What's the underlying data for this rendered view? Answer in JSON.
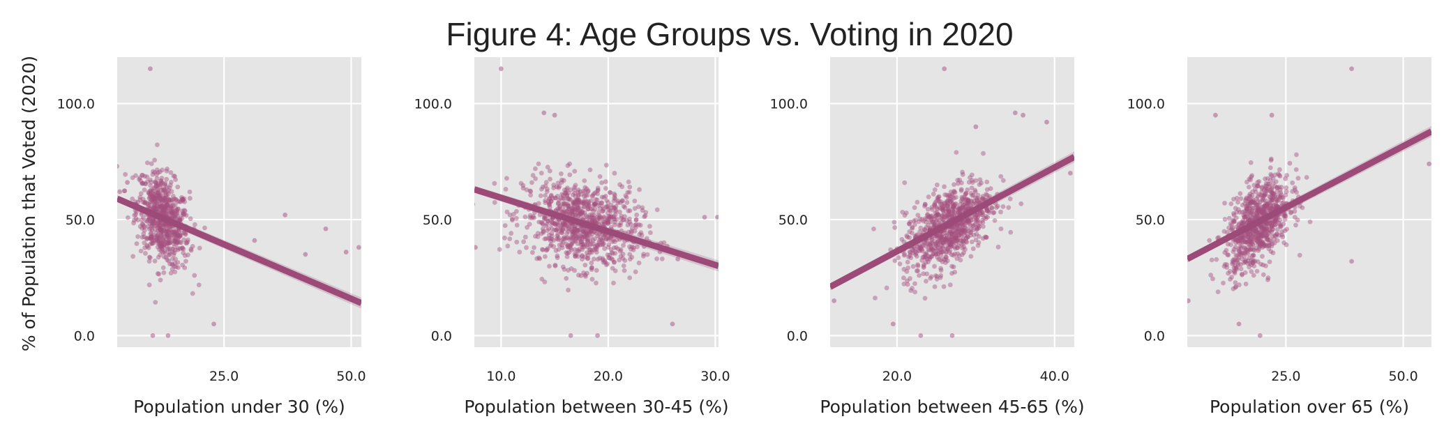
{
  "title": "Figure 4: Age Groups vs. Voting in 2020",
  "ylabel": "% of Population that Voted (2020)",
  "colors": {
    "points": "#a3507f",
    "line": "#9c4a78",
    "panel_bg": "#e5e5e5",
    "grid": "#ffffff"
  },
  "chart_data": [
    {
      "type": "scatter",
      "xlabel": "Population under 30 (%)",
      "xlim": [
        4,
        52
      ],
      "xticks": [
        25,
        50
      ],
      "xtick_labels": [
        "25.0",
        "50.0"
      ],
      "ylim": [
        -5,
        120
      ],
      "yticks": [
        0,
        50,
        100
      ],
      "ytick_labels": [
        "0.0",
        "50.0",
        "100.0"
      ],
      "regression": {
        "x": [
          4,
          52
        ],
        "y": [
          59,
          14
        ]
      },
      "cluster": {
        "x_center": 13,
        "y_center": 50,
        "x_spread": 2.6,
        "y_spread": 10,
        "correlation": -0.35,
        "count": 700
      },
      "outliers": [
        [
          10.5,
          115
        ],
        [
          11,
          0
        ],
        [
          14,
          0
        ],
        [
          23,
          5
        ],
        [
          37,
          52
        ],
        [
          41,
          35
        ],
        [
          45,
          46
        ],
        [
          49,
          36
        ],
        [
          51.5,
          38
        ],
        [
          6,
          66
        ],
        [
          4.5,
          62
        ],
        [
          31,
          41
        ]
      ]
    },
    {
      "type": "scatter",
      "xlabel": "Population between 30-45 (%)",
      "xlim": [
        7.5,
        30.3
      ],
      "xticks": [
        10,
        20,
        30
      ],
      "xtick_labels": [
        "10.0",
        "20.0",
        "30.0"
      ],
      "ylim": [
        -5,
        120
      ],
      "yticks": [
        0,
        50,
        100
      ],
      "ytick_labels": [
        "0.0",
        "50.0",
        "100.0"
      ],
      "regression": {
        "x": [
          7.5,
          30.3
        ],
        "y": [
          63,
          30
        ]
      },
      "cluster": {
        "x_center": 17.5,
        "y_center": 48,
        "x_spread": 2.7,
        "y_spread": 9.5,
        "correlation": -0.2,
        "count": 900
      },
      "outliers": [
        [
          10,
          115
        ],
        [
          14,
          96
        ],
        [
          15,
          95
        ],
        [
          16.5,
          0
        ],
        [
          19,
          0
        ],
        [
          26,
          5
        ],
        [
          29,
          51
        ],
        [
          30.2,
          51
        ],
        [
          7.6,
          38
        ],
        [
          26.5,
          33
        ]
      ]
    },
    {
      "type": "scatter",
      "xlabel": "Population between 45-65 (%)",
      "xlim": [
        11.5,
        42.5
      ],
      "xticks": [
        20,
        40
      ],
      "xtick_labels": [
        "20.0",
        "40.0"
      ],
      "ylim": [
        -5,
        120
      ],
      "yticks": [
        0,
        50,
        100
      ],
      "ytick_labels": [
        "0.0",
        "50.0",
        "100.0"
      ],
      "regression": {
        "x": [
          11.5,
          42.5
        ],
        "y": [
          21,
          77
        ]
      },
      "cluster": {
        "x_center": 26.5,
        "y_center": 47,
        "x_spread": 2.8,
        "y_spread": 10,
        "correlation": 0.55,
        "count": 850
      },
      "outliers": [
        [
          26,
          115
        ],
        [
          19.5,
          5
        ],
        [
          23,
          0
        ],
        [
          27,
          0
        ],
        [
          35,
          96
        ],
        [
          36,
          95
        ],
        [
          39,
          92
        ],
        [
          30,
          90
        ],
        [
          42,
          70
        ],
        [
          12,
          15
        ]
      ]
    },
    {
      "type": "scatter",
      "xlabel": "Population over 65 (%)",
      "xlim": [
        4,
        56
      ],
      "xticks": [
        25,
        50
      ],
      "xtick_labels": [
        "25.0",
        "50.0"
      ],
      "ylim": [
        -5,
        120
      ],
      "yticks": [
        0,
        50,
        100
      ],
      "ytick_labels": [
        "0.0",
        "50.0",
        "100.0"
      ],
      "regression": {
        "x": [
          4,
          56
        ],
        "y": [
          33,
          88
        ]
      },
      "cluster": {
        "x_center": 19,
        "y_center": 48,
        "x_spread": 3.5,
        "y_spread": 10,
        "correlation": 0.5,
        "count": 800
      },
      "outliers": [
        [
          39,
          115
        ],
        [
          10,
          95
        ],
        [
          22,
          95
        ],
        [
          19.5,
          0
        ],
        [
          15,
          5
        ],
        [
          39,
          32
        ],
        [
          55.5,
          74
        ],
        [
          4.2,
          15
        ],
        [
          31,
          61
        ]
      ]
    }
  ]
}
